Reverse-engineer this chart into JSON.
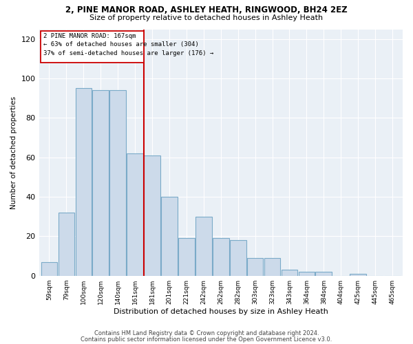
{
  "title1": "2, PINE MANOR ROAD, ASHLEY HEATH, RINGWOOD, BH24 2EZ",
  "title2": "Size of property relative to detached houses in Ashley Heath",
  "xlabel": "Distribution of detached houses by size in Ashley Heath",
  "ylabel": "Number of detached properties",
  "bin_labels": [
    "59sqm",
    "79sqm",
    "100sqm",
    "120sqm",
    "140sqm",
    "161sqm",
    "181sqm",
    "201sqm",
    "221sqm",
    "242sqm",
    "262sqm",
    "282sqm",
    "303sqm",
    "323sqm",
    "343sqm",
    "364sqm",
    "384sqm",
    "404sqm",
    "425sqm",
    "445sqm",
    "465sqm"
  ],
  "bar_heights": [
    7,
    32,
    95,
    94,
    94,
    62,
    61,
    40,
    19,
    30,
    19,
    18,
    9,
    9,
    3,
    2,
    2,
    0,
    1,
    0,
    0
  ],
  "bar_color": "#ccdaea",
  "bar_edgecolor": "#7aaac8",
  "vline_color": "#cc0000",
  "annotation_box_color": "#cc0000",
  "ylim": [
    0,
    125
  ],
  "yticks": [
    0,
    20,
    40,
    60,
    80,
    100,
    120
  ],
  "footer1": "Contains HM Land Registry data © Crown copyright and database right 2024.",
  "footer2": "Contains public sector information licensed under the Open Government Licence v3.0.",
  "background_color": "#eaf0f6"
}
